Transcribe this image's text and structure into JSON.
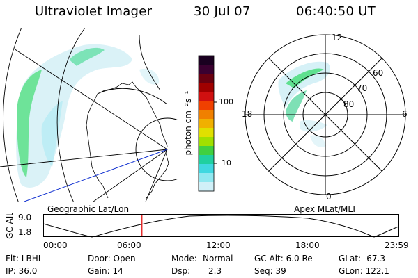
{
  "header": {
    "instrument": "Ultraviolet Imager",
    "date": "30 Jul 07",
    "time": "06:40:50 UT"
  },
  "colorbar": {
    "label": "photon cm⁻²s⁻¹",
    "ticks": [
      "100",
      "10"
    ],
    "colors": [
      "#1a0020",
      "#3a0030",
      "#6a0010",
      "#a00000",
      "#d01010",
      "#f04000",
      "#f08000",
      "#f0b000",
      "#e0e000",
      "#a0e000",
      "#40d040",
      "#20d0a0",
      "#40d8e0",
      "#90e8f0",
      "#d0f0f8"
    ]
  },
  "geo_panel": {
    "label": "Geographic Lat/Lon"
  },
  "polar_panel": {
    "label": "Apex MLat/MLT",
    "mlt_labels": {
      "top": "12",
      "left": "18",
      "right": "6",
      "bottom": "0"
    },
    "mlat_labels": [
      "60",
      "70",
      "80"
    ]
  },
  "altitude_plot": {
    "ylabel": "GC Alt",
    "yticks": [
      "9.0",
      "1.8"
    ],
    "xticks": [
      "00:00",
      "06:00",
      "12:00",
      "18:00",
      "23:59"
    ],
    "current_time_fraction": 0.278
  },
  "footer": {
    "row1": {
      "flt": "Flt: LBHL",
      "door": "Door: Open",
      "mode_label": "Mode:",
      "mode_value": "Normal",
      "gcalt": "GC Alt: 6.0 Re",
      "glat": "GLat: -67.3"
    },
    "row2": {
      "ip": "IP: 36.0",
      "gain": "Gain: 14",
      "dsp_label": "Dsp:",
      "dsp_value": "2.3",
      "seq": "Seq: 39",
      "glon": "GLon: 122.1"
    }
  }
}
